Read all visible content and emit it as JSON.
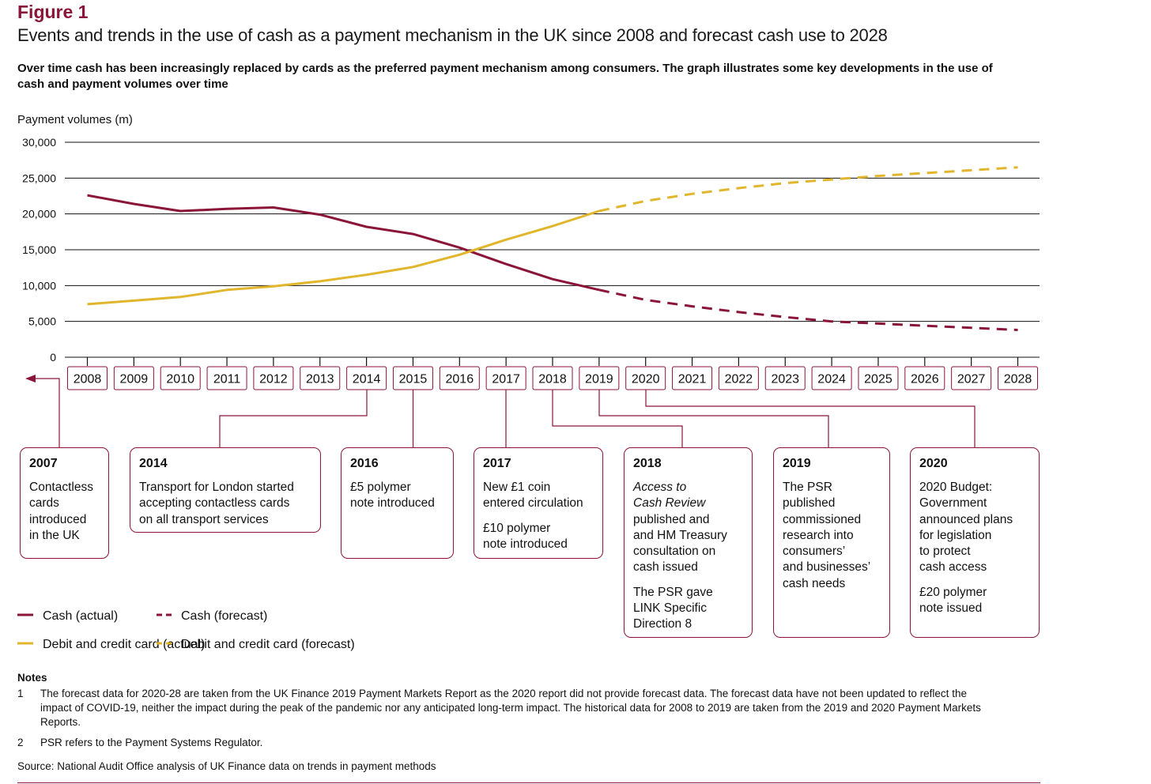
{
  "figure_label": "Figure 1",
  "title": "Events and trends in the use of cash as a payment mechanism in the UK since 2008 and forecast cash use to 2028",
  "subtitle": "Over time cash has been increasingly replaced by cards as the preferred payment mechanism among consumers. The graph illustrates some key developments in the use of cash and payment volumes over time",
  "colors": {
    "cash": "#8a1538",
    "card": "#e2b62c",
    "grid": "#111111"
  },
  "chart_data": {
    "type": "line",
    "ylabel": "Payment volumes (m)",
    "ylim": [
      0,
      30000
    ],
    "y_ticks": [
      "30,000",
      "25,000",
      "20,000",
      "15,000",
      "10,000",
      "5,000",
      "0"
    ],
    "y_tick_values": [
      30000,
      25000,
      20000,
      15000,
      10000,
      5000,
      0
    ],
    "x": [
      "2008",
      "2009",
      "2010",
      "2011",
      "2012",
      "2013",
      "2014",
      "2015",
      "2016",
      "2017",
      "2018",
      "2019",
      "2020",
      "2021",
      "2022",
      "2023",
      "2024",
      "2025",
      "2026",
      "2027",
      "2028"
    ],
    "grid": true,
    "series": [
      {
        "name": "Cash (actual)",
        "style": "solid",
        "color": "#8a1538",
        "x": [
          2008,
          2009,
          2010,
          2011,
          2012,
          2013,
          2014,
          2015,
          2016,
          2017,
          2018,
          2019
        ],
        "values": [
          22600,
          21400,
          20400,
          20700,
          20900,
          19900,
          18200,
          17200,
          15300,
          13000,
          10900,
          9400
        ]
      },
      {
        "name": "Cash (forecast)",
        "style": "dashed",
        "color": "#8a1538",
        "x": [
          2019,
          2020,
          2021,
          2022,
          2023,
          2024,
          2025,
          2026,
          2027,
          2028
        ],
        "values": [
          9400,
          8000,
          7100,
          6300,
          5600,
          5000,
          4700,
          4400,
          4100,
          3800
        ]
      },
      {
        "name": "Debit and credit card (actual)",
        "style": "solid",
        "color": "#e2b62c",
        "x": [
          2008,
          2009,
          2010,
          2011,
          2012,
          2013,
          2014,
          2015,
          2016,
          2017,
          2018,
          2019
        ],
        "values": [
          7400,
          7900,
          8400,
          9400,
          9900,
          10600,
          11500,
          12600,
          14300,
          16400,
          18300,
          20400
        ]
      },
      {
        "name": "Debit and credit card (forecast)",
        "style": "dashed",
        "color": "#e2b62c",
        "x": [
          2019,
          2020,
          2021,
          2022,
          2023,
          2024,
          2025,
          2026,
          2027,
          2028
        ],
        "values": [
          20400,
          21800,
          22800,
          23600,
          24300,
          24800,
          25300,
          25700,
          26100,
          26500
        ]
      }
    ],
    "legend_placement": "bottom-left"
  },
  "events": [
    {
      "year": "2007",
      "lines": [
        "Contactless",
        "cards",
        "introduced",
        "in the UK"
      ]
    },
    {
      "year": "2014",
      "lines": [
        "Transport for London started",
        "accepting contactless cards",
        "on all transport services"
      ]
    },
    {
      "year": "2016",
      "lines": [
        "£5 polymer",
        "note introduced"
      ]
    },
    {
      "year": "2017",
      "lines": [
        "New £1 coin",
        "entered circulation"
      ],
      "lines2": [
        "£10 polymer",
        "note introduced"
      ]
    },
    {
      "year": "2018",
      "lines_italic": [
        "Access to",
        "Cash Review"
      ],
      "lines": [
        "published and",
        "and HM Treasury",
        "consultation on",
        "cash issued"
      ],
      "lines2": [
        "The PSR gave",
        "LINK Specific",
        "Direction 8"
      ]
    },
    {
      "year": "2019",
      "lines": [
        "The PSR",
        "published",
        "commissioned",
        "research into",
        "consumers’",
        "and businesses’",
        "cash needs"
      ]
    },
    {
      "year": "2020",
      "lines": [
        "2020 Budget:",
        "Government",
        "announced plans",
        "for legislation",
        "to protect",
        "cash access"
      ],
      "lines2": [
        "£20 polymer",
        "note issued"
      ]
    }
  ],
  "notes": {
    "heading": "Notes",
    "items": [
      {
        "num": "1",
        "text": "The forecast data for 2020-28 are taken from the UK Finance 2019 Payment Markets Report as the 2020 report did not provide forecast data. The forecast data have not been updated to reflect the impact of COVID-19, neither the impact during the peak of the pandemic nor any anticipated long-term impact. The historical data for 2008 to 2019 are taken from the 2019 and 2020 Payment Markets Reports."
      },
      {
        "num": "2",
        "text": "PSR refers to the Payment Systems Regulator."
      }
    ],
    "source": "Source: National Audit Office analysis of UK Finance data on trends in payment methods"
  }
}
